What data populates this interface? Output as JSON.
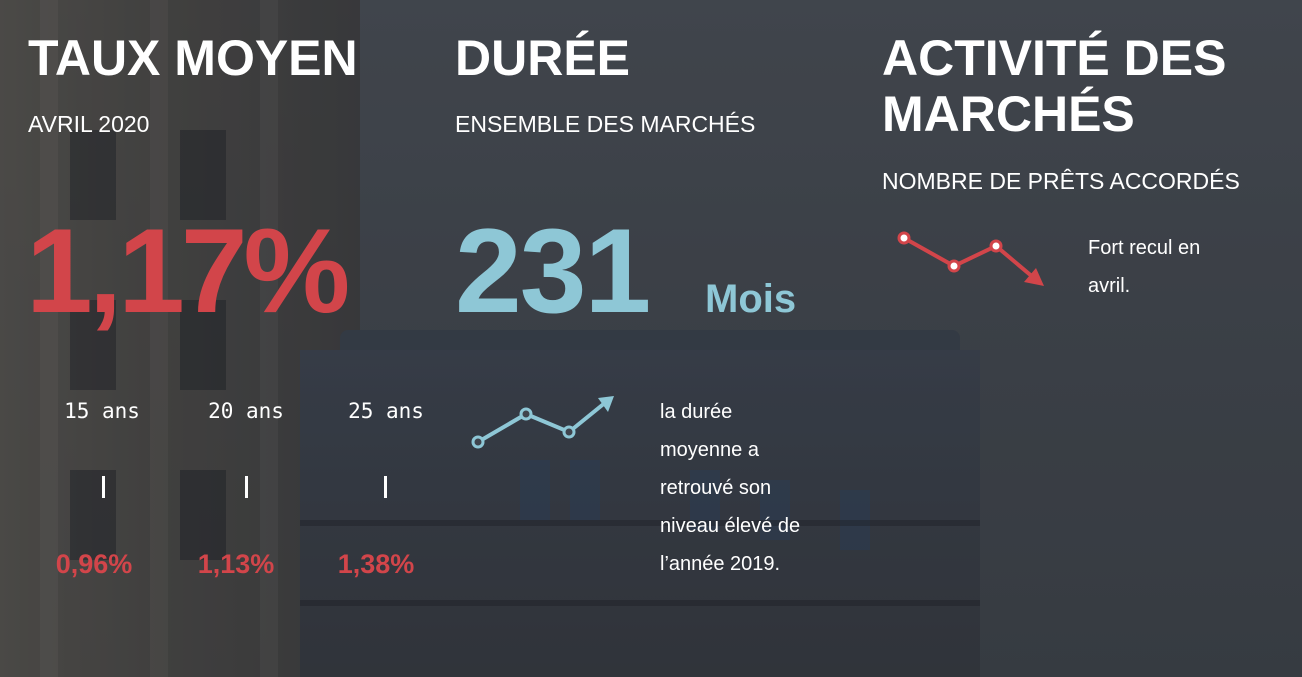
{
  "colors": {
    "red": "#d2454a",
    "blue": "#8ec7d6",
    "white": "#ffffff"
  },
  "taux": {
    "title": "TAUX MOYEN",
    "subtitle": "AVRIL 2020",
    "value": "1,17%",
    "terms": [
      {
        "label": "15 ans",
        "rate": "0,96%"
      },
      {
        "label": "20 ans",
        "rate": "1,13%"
      },
      {
        "label": "25 ans",
        "rate": "1,38%"
      }
    ]
  },
  "duree": {
    "title": "DURÉE",
    "subtitle": "ENSEMBLE DES MARCHÉS",
    "value": "231",
    "unit": "Mois",
    "trend_icon": "trend-up-icon",
    "note_lines": [
      "la durée",
      "moyenne a",
      "retrouvé son",
      "niveau élevé de",
      "l’année 2019."
    ]
  },
  "activite": {
    "title_line1": "ACTIVITÉ DES",
    "title_line2": "MARCHÉS",
    "subtitle": "NOMBRE DE PRÊTS ACCORDÉS",
    "trend_icon": "trend-down-icon",
    "note_lines": [
      "Fort recul en",
      "avril."
    ]
  }
}
